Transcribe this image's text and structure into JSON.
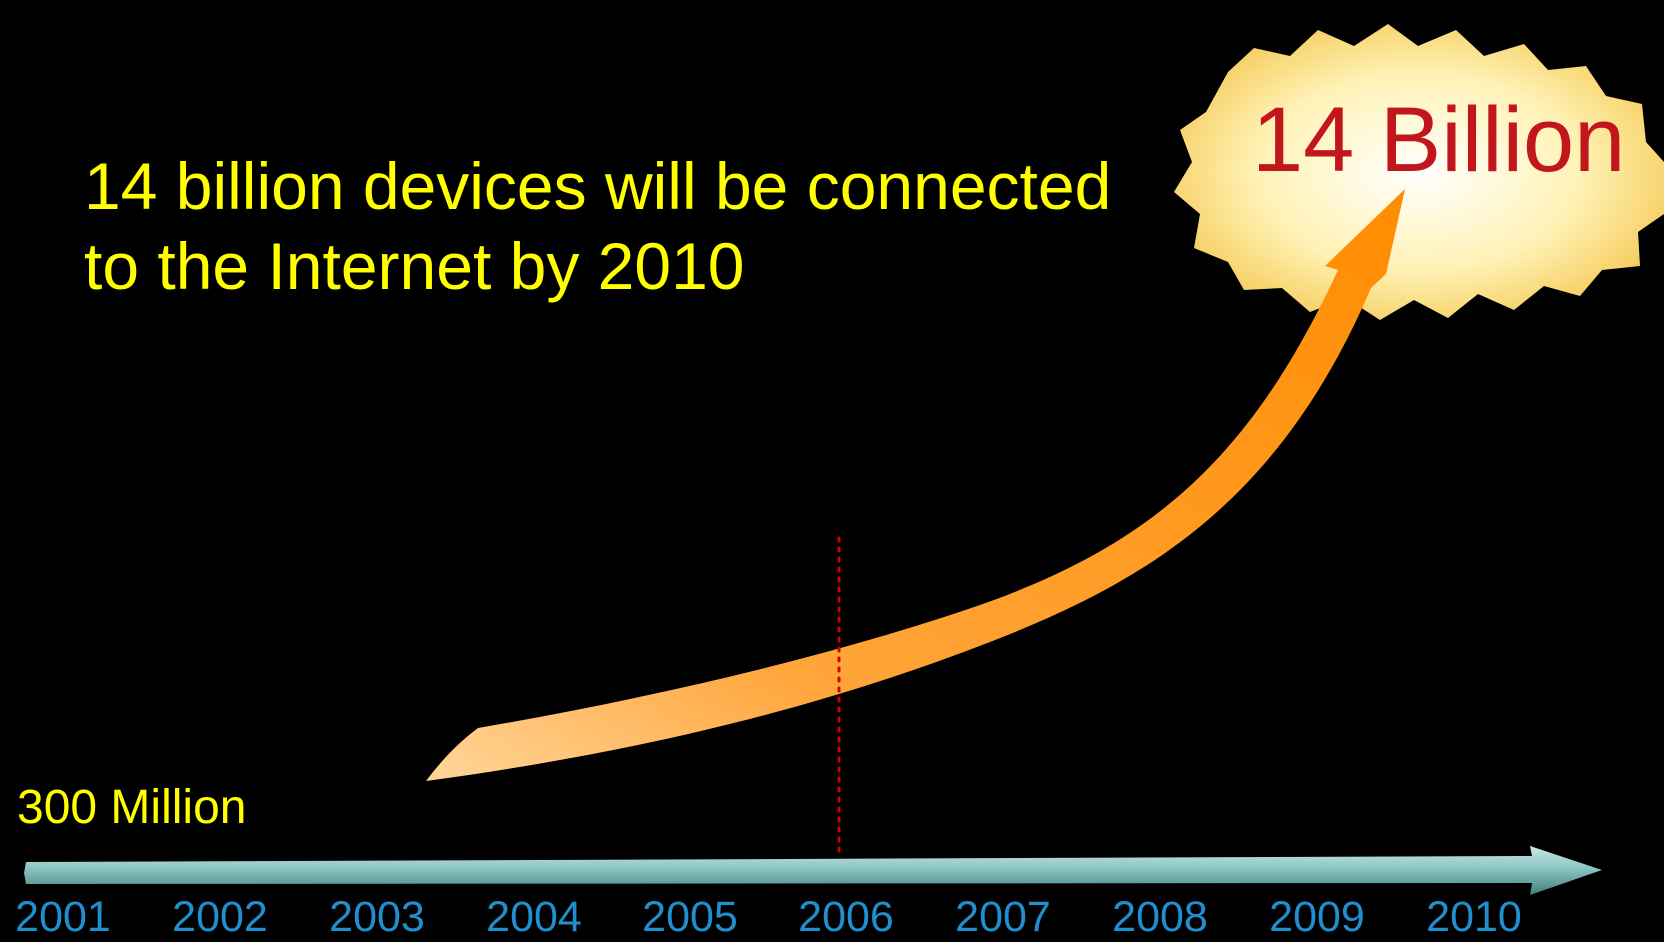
{
  "headline": {
    "line1": "14 billion devices will be connected",
    "line2": "to the Internet by 2010"
  },
  "start_label": "300 Million",
  "end_label": "14 Billion",
  "timeline": {
    "years": [
      "2001",
      "2002",
      "2003",
      "2004",
      "2005",
      "2006",
      "2007",
      "2008",
      "2009",
      "2010"
    ],
    "marker_year": "2006"
  },
  "colors": {
    "background": "#000000",
    "headline_text": "#ffff00",
    "end_label_text": "#c0161c",
    "year_text": "#1f8fd0",
    "growth_arrow": "#ff9a1a",
    "burst": "#ffe27a",
    "marker_line": "#d00000",
    "axis": "#8cc6c4"
  }
}
